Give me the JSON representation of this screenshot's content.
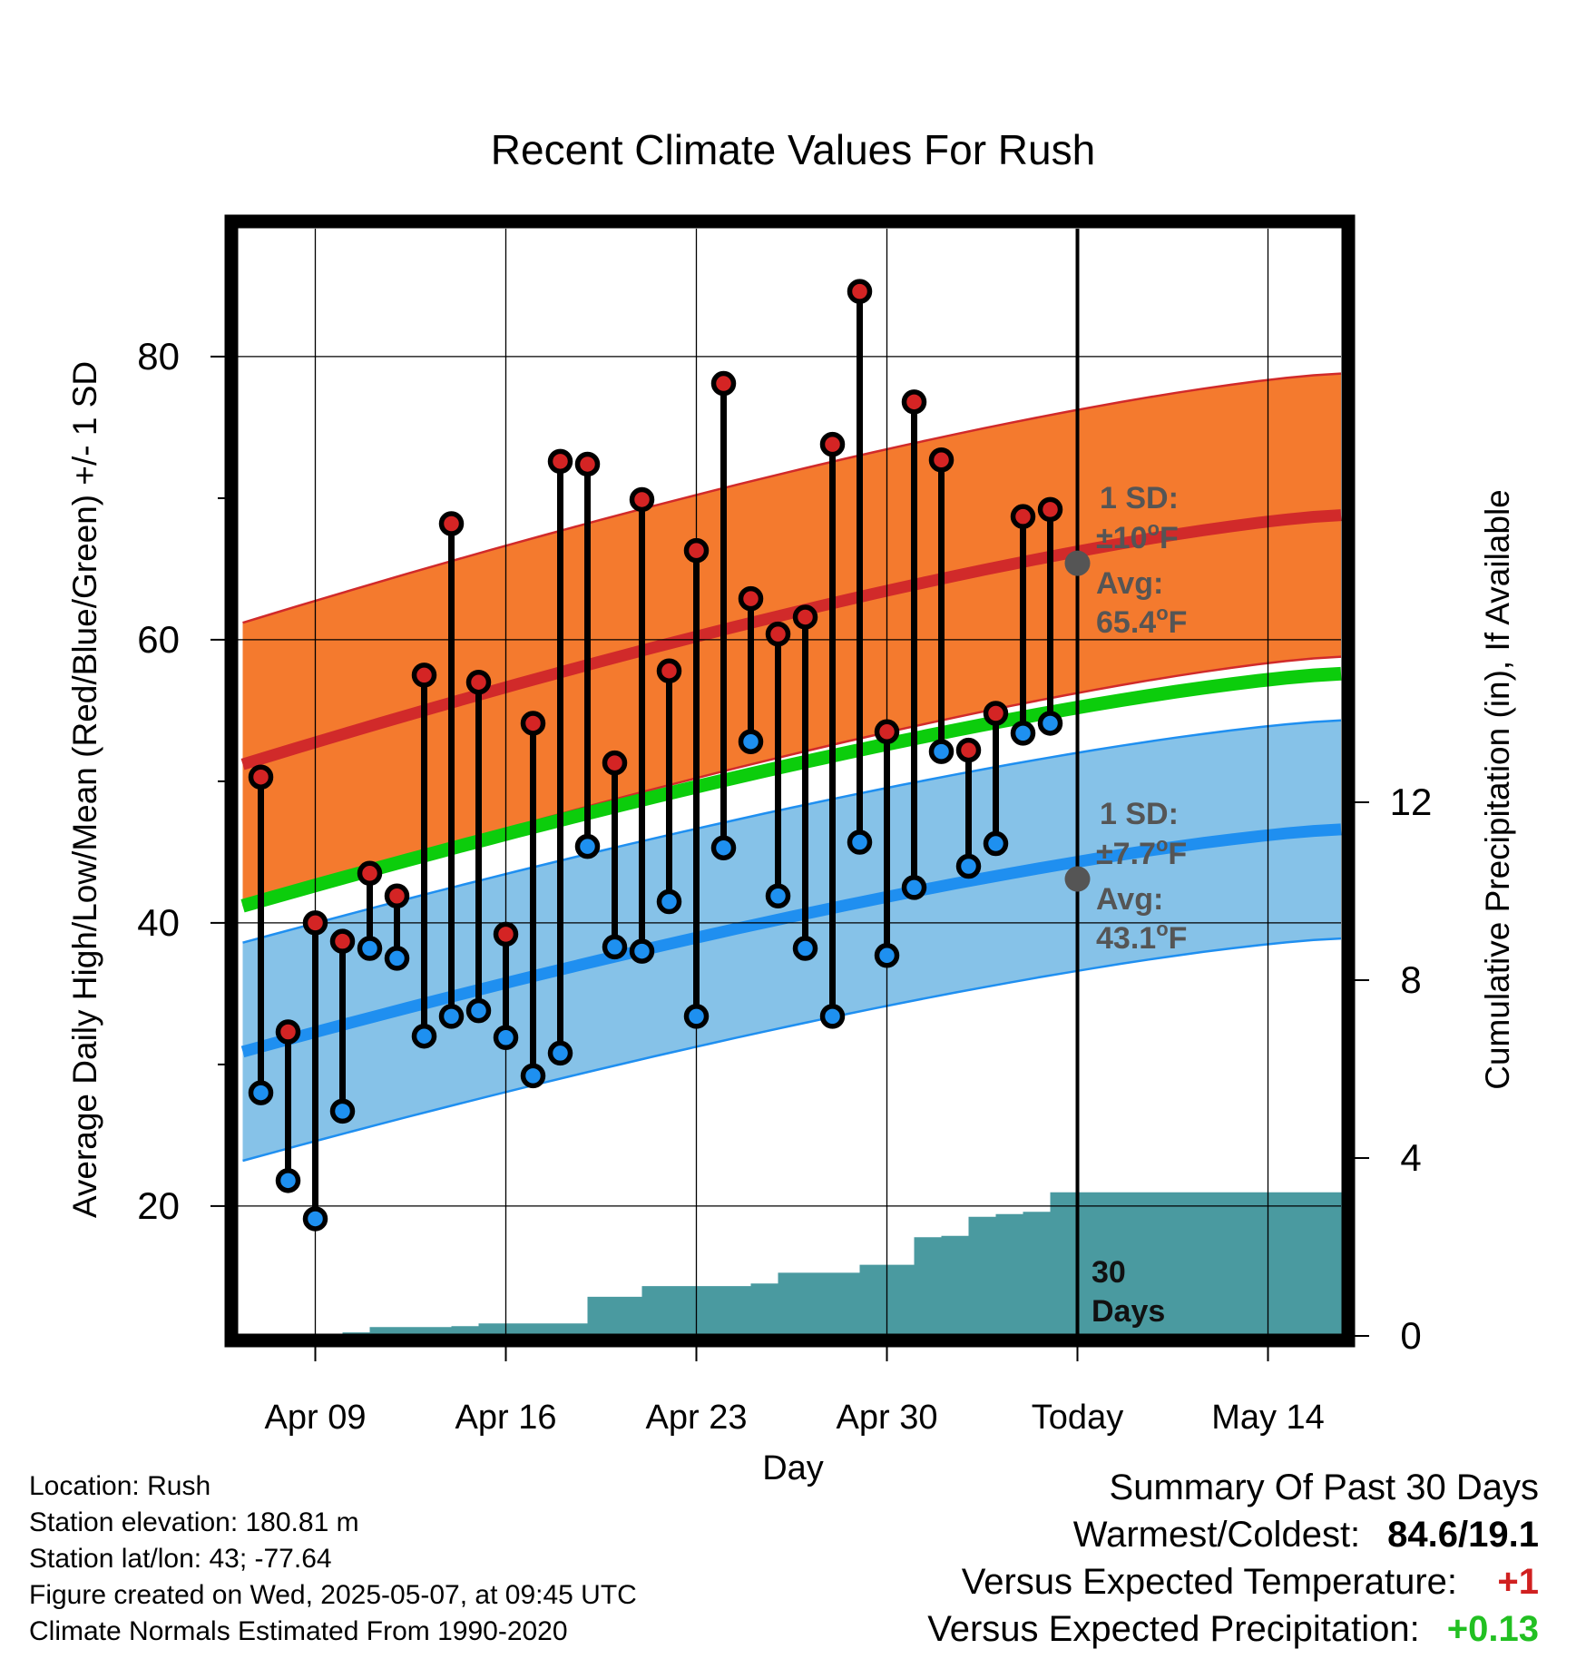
{
  "chart_data": {
    "type": "line",
    "title": "Recent Climate Values For Rush",
    "xlabel": "Day",
    "ylabel": "Average Daily High/Low/Mean (Red/Blue/Green) +/- 1 SD",
    "y2label": "Cumulative Precipitation (in), If Available",
    "ylim": [
      11.5,
      90
    ],
    "y2lim": [
      0,
      20.9
    ],
    "yticks": [
      "20",
      "40",
      "60",
      "80"
    ],
    "y2ticks": [
      "0",
      "4",
      "8",
      "12"
    ],
    "xticks": [
      "Apr 09",
      "Apr 16",
      "Apr 23",
      "Apr 30",
      "Today",
      "May 14"
    ],
    "days": [
      "Apr 07",
      "Apr 08",
      "Apr 09",
      "Apr 10",
      "Apr 11",
      "Apr 12",
      "Apr 13",
      "Apr 14",
      "Apr 15",
      "Apr 16",
      "Apr 17",
      "Apr 18",
      "Apr 19",
      "Apr 20",
      "Apr 21",
      "Apr 22",
      "Apr 23",
      "Apr 24",
      "Apr 25",
      "Apr 26",
      "Apr 27",
      "Apr 28",
      "Apr 29",
      "Apr 30",
      "May 01",
      "May 02",
      "May 03",
      "May 04",
      "May 05",
      "May 06"
    ],
    "highs": [
      50.3,
      32.3,
      40.0,
      38.7,
      43.5,
      41.9,
      57.5,
      68.2,
      57.0,
      39.2,
      54.1,
      72.6,
      72.4,
      51.3,
      69.9,
      57.8,
      66.3,
      78.1,
      62.9,
      60.4,
      61.6,
      73.8,
      84.6,
      53.5,
      76.8,
      72.7,
      52.2,
      54.8,
      68.7,
      69.2
    ],
    "lows": [
      28.0,
      21.8,
      19.1,
      26.7,
      38.2,
      37.5,
      32.0,
      33.4,
      33.8,
      31.9,
      29.2,
      30.8,
      45.4,
      38.3,
      38.0,
      41.5,
      33.4,
      45.3,
      52.8,
      41.9,
      38.2,
      33.4,
      45.7,
      37.7,
      42.5,
      52.1,
      44.0,
      45.6,
      53.4,
      54.1
    ],
    "normal_high": {
      "start": 51.2,
      "end": 68.8,
      "sd": 10
    },
    "normal_low": {
      "start": 30.9,
      "end": 46.6,
      "sd": 7.7
    },
    "normal_mean": {
      "start": 41.2,
      "end": 57.6
    },
    "precip_days": [
      "Apr 09",
      "Apr 10",
      "Apr 11",
      "Apr 14",
      "Apr 15",
      "Apr 16",
      "Apr 18",
      "Apr 19",
      "Apr 20",
      "Apr 21",
      "Apr 24",
      "Apr 25",
      "Apr 26",
      "Apr 27",
      "Apr 28",
      "Apr 29",
      "Apr 30",
      "May 01",
      "May 02",
      "May 03",
      "May 04",
      "May 05",
      "May 06",
      "May 19"
    ],
    "precip_cum": [
      0,
      0.08,
      0.2,
      0.22,
      0.28,
      0.28,
      0.28,
      0.88,
      0.88,
      1.12,
      1.12,
      1.18,
      1.42,
      1.42,
      1.42,
      1.6,
      1.6,
      2.22,
      2.25,
      2.68,
      2.74,
      2.79,
      3.23,
      3.23
    ],
    "annotations": {
      "high_sd": {
        "line1": "1 SD:",
        "line2": "±10",
        "unit": "F",
        "avg_label": "Avg:",
        "avg_value": "65.4",
        "value": 65.4
      },
      "low_sd": {
        "line1": "1 SD:",
        "line2": "±7.7",
        "unit": "F",
        "avg_label": "Avg:",
        "avg_value": "43.1",
        "value": 43.1
      },
      "window": {
        "line1": "30",
        "line2": "Days"
      }
    },
    "today_label": "Today",
    "colors": {
      "high_band": "#f47a2e",
      "high_line": "#d12a2a",
      "low_band": "#86c2e8",
      "low_line": "#1f8ff0",
      "mean_line": "#0ccd0c",
      "precip": "#4a9aa0",
      "high_marker": "#d42424",
      "low_marker": "#1e90f0",
      "annotation": "#555555"
    }
  },
  "info": {
    "location": "Location: Rush",
    "elevation": "Station elevation: 180.81 m",
    "latlon": "Station lat/lon: 43; -77.64",
    "created": "Figure created on Wed, 2025-05-07, at 09:45 UTC",
    "normals": "Climate Normals Estimated From 1990-2020"
  },
  "summary": {
    "title": "Summary Of Past 30 Days",
    "warm_label": "Warmest/Coldest:",
    "warm_value": "84.6/19.1",
    "temp_label": "Versus Expected Temperature:",
    "temp_value": "+1",
    "temp_color": "#d02020",
    "precip_label": "Versus Expected Precipitation:",
    "precip_value": "+0.13",
    "precip_color": "#22c022"
  }
}
